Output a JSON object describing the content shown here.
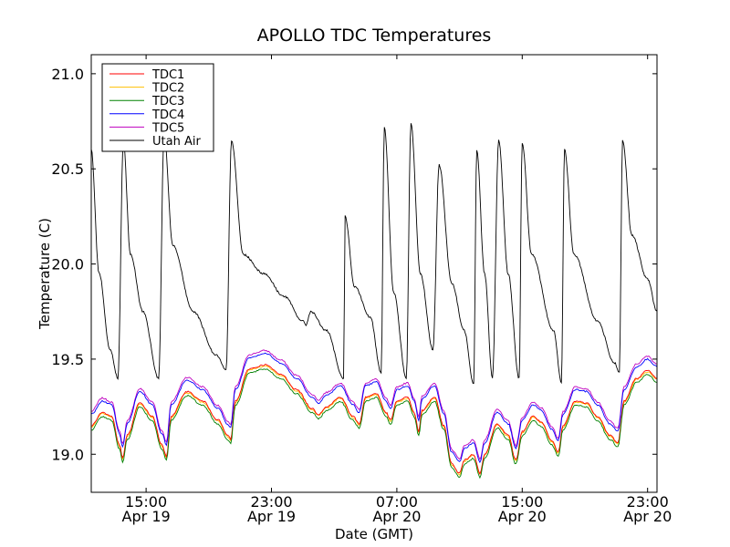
{
  "chart_data": {
    "type": "line",
    "title": "APOLLO TDC Temperatures",
    "xlabel": "Date (GMT)",
    "ylabel": "Temperature (C)",
    "xlim_hours": [
      11.5,
      47.6
    ],
    "ylim": [
      18.8,
      21.1
    ],
    "y_ticks": [
      "19.0",
      "19.5",
      "20.0",
      "20.5",
      "21.0"
    ],
    "x_ticks": [
      {
        "time": "15:00",
        "date": "Apr 19",
        "hour": 15
      },
      {
        "time": "23:00",
        "date": "Apr 19",
        "hour": 23
      },
      {
        "time": "07:00",
        "date": "Apr 20",
        "hour": 31
      },
      {
        "time": "15:00",
        "date": "Apr 20",
        "hour": 39
      },
      {
        "time": "23:00",
        "date": "Apr 20",
        "hour": 47
      }
    ],
    "legend_position": "top-left",
    "series": [
      {
        "name": "TDC1",
        "color": "#ff0000"
      },
      {
        "name": "TDC2",
        "color": "#ffbf00"
      },
      {
        "name": "TDC3",
        "color": "#008000"
      },
      {
        "name": "TDC4",
        "color": "#0000ff"
      },
      {
        "name": "TDC5",
        "color": "#bf00bf"
      },
      {
        "name": "Utah Air",
        "color": "#000000"
      }
    ],
    "tdc_envelope": [
      [
        11.5,
        19.15
      ],
      [
        12.2,
        19.22
      ],
      [
        12.8,
        19.2
      ],
      [
        13.3,
        19.05
      ],
      [
        13.5,
        18.98
      ],
      [
        13.8,
        19.1
      ],
      [
        14.6,
        19.27
      ],
      [
        15.4,
        19.2
      ],
      [
        16.0,
        19.05
      ],
      [
        16.3,
        18.99
      ],
      [
        16.6,
        19.2
      ],
      [
        17.6,
        19.33
      ],
      [
        18.6,
        19.28
      ],
      [
        19.6,
        19.18
      ],
      [
        20.2,
        19.1
      ],
      [
        20.4,
        19.08
      ],
      [
        20.7,
        19.28
      ],
      [
        21.6,
        19.45
      ],
      [
        22.6,
        19.47
      ],
      [
        23.6,
        19.42
      ],
      [
        24.6,
        19.34
      ],
      [
        25.6,
        19.24
      ],
      [
        26.0,
        19.21
      ],
      [
        26.5,
        19.25
      ],
      [
        27.4,
        19.3
      ],
      [
        28.2,
        19.2
      ],
      [
        28.6,
        19.16
      ],
      [
        29.0,
        19.3
      ],
      [
        29.7,
        19.32
      ],
      [
        30.3,
        19.22
      ],
      [
        30.6,
        19.18
      ],
      [
        31.0,
        19.28
      ],
      [
        31.7,
        19.3
      ],
      [
        32.1,
        19.22
      ],
      [
        32.4,
        19.12
      ],
      [
        32.6,
        19.23
      ],
      [
        33.4,
        19.3
      ],
      [
        34.0,
        19.15
      ],
      [
        34.5,
        18.95
      ],
      [
        35.0,
        18.9
      ],
      [
        35.3,
        18.97
      ],
      [
        35.9,
        19.0
      ],
      [
        36.3,
        18.9
      ],
      [
        36.6,
        19.0
      ],
      [
        37.4,
        19.16
      ],
      [
        38.1,
        19.1
      ],
      [
        38.6,
        18.97
      ],
      [
        39.0,
        19.12
      ],
      [
        39.7,
        19.2
      ],
      [
        40.2,
        19.17
      ],
      [
        40.9,
        19.07
      ],
      [
        41.3,
        19.01
      ],
      [
        41.6,
        19.15
      ],
      [
        42.4,
        19.28
      ],
      [
        43.1,
        19.27
      ],
      [
        43.8,
        19.2
      ],
      [
        44.6,
        19.1
      ],
      [
        45.1,
        19.06
      ],
      [
        45.5,
        19.28
      ],
      [
        46.3,
        19.4
      ],
      [
        47.0,
        19.44
      ],
      [
        47.6,
        19.4
      ]
    ],
    "utah_air": [
      [
        11.5,
        20.6
      ],
      [
        12.0,
        19.95
      ],
      [
        12.7,
        19.55
      ],
      [
        13.2,
        19.4
      ],
      [
        13.55,
        20.65
      ],
      [
        14.0,
        20.05
      ],
      [
        14.8,
        19.75
      ],
      [
        15.8,
        19.4
      ],
      [
        16.15,
        20.68
      ],
      [
        16.7,
        20.1
      ],
      [
        18.0,
        19.75
      ],
      [
        19.5,
        19.52
      ],
      [
        20.1,
        19.44
      ],
      [
        20.45,
        20.65
      ],
      [
        21.2,
        20.05
      ],
      [
        22.5,
        19.95
      ],
      [
        23.8,
        19.83
      ],
      [
        25.0,
        19.7
      ],
      [
        25.2,
        19.68
      ],
      [
        25.5,
        19.75
      ],
      [
        26.5,
        19.65
      ],
      [
        27.6,
        19.4
      ],
      [
        27.7,
        20.25
      ],
      [
        28.3,
        19.88
      ],
      [
        29.3,
        19.72
      ],
      [
        30.0,
        19.43
      ],
      [
        30.2,
        20.72
      ],
      [
        30.8,
        19.85
      ],
      [
        31.6,
        19.4
      ],
      [
        31.9,
        20.74
      ],
      [
        32.5,
        19.95
      ],
      [
        33.3,
        19.55
      ],
      [
        33.7,
        20.52
      ],
      [
        34.5,
        19.9
      ],
      [
        35.3,
        19.65
      ],
      [
        35.9,
        19.37
      ],
      [
        36.1,
        20.6
      ],
      [
        36.6,
        19.95
      ],
      [
        37.1,
        19.4
      ],
      [
        37.5,
        20.65
      ],
      [
        38.1,
        19.95
      ],
      [
        38.8,
        19.4
      ],
      [
        39.0,
        20.63
      ],
      [
        39.6,
        20.05
      ],
      [
        41.0,
        19.65
      ],
      [
        41.5,
        19.38
      ],
      [
        41.7,
        20.6
      ],
      [
        42.3,
        20.05
      ],
      [
        43.8,
        19.7
      ],
      [
        44.9,
        19.48
      ],
      [
        45.2,
        19.43
      ],
      [
        45.4,
        20.65
      ],
      [
        46.0,
        20.15
      ],
      [
        47.0,
        19.92
      ],
      [
        47.6,
        19.75
      ]
    ]
  }
}
